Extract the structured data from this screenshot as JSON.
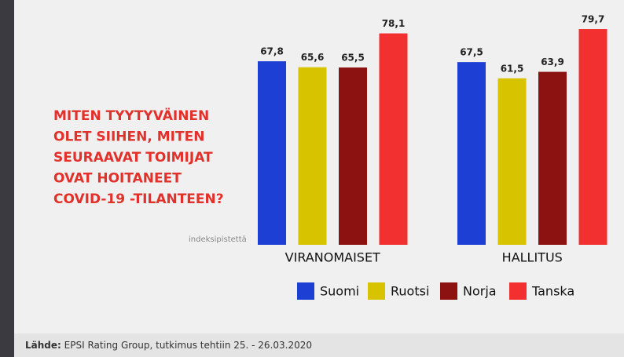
{
  "chart_data": {
    "type": "bar",
    "title": [
      "MITEN TYYTYVÄINEN",
      "OLET SIIHEN, MITEN",
      "SEURAAVAT TOIMIJAT",
      "OVAT HOITANEET",
      "COVID-19 -TILANTEEN?"
    ],
    "y_label": "indeksipistettä",
    "categories": [
      "VIRANOMAISET",
      "HALLITUS"
    ],
    "series": [
      {
        "name": "Suomi",
        "color": "#1e3fd4",
        "values": [
          67.8,
          67.5
        ],
        "value_labels": [
          "67,8",
          "67,5"
        ]
      },
      {
        "name": "Ruotsi",
        "color": "#d8c300",
        "values": [
          65.6,
          61.5
        ],
        "value_labels": [
          "65,6",
          "61,5"
        ]
      },
      {
        "name": "Norja",
        "color": "#8c1212",
        "values": [
          65.5,
          63.9
        ],
        "value_labels": [
          "65,5",
          "63,9"
        ]
      },
      {
        "name": "Tanska",
        "color": "#f2302f",
        "values": [
          78.1,
          79.7
        ],
        "value_labels": [
          "78,1",
          "79,7"
        ]
      }
    ],
    "ylim": [
      0,
      80
    ],
    "source_label": "Lähde:",
    "source": "EPSI Rating Group, tutkimus tehtiin 25. - 26.03.2020"
  }
}
